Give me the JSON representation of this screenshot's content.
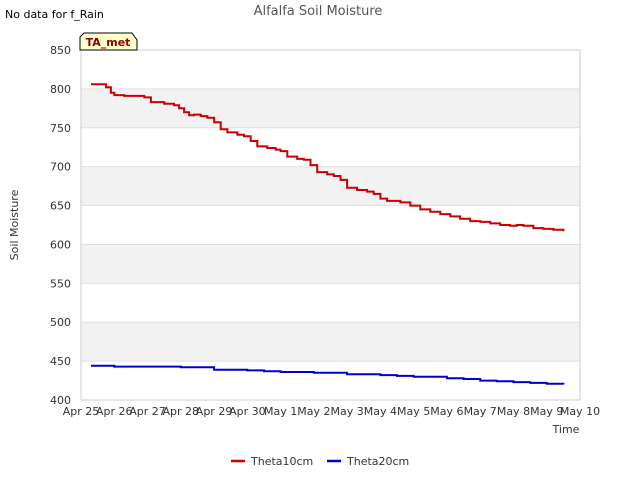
{
  "note": "No data for f_Rain",
  "badge": "TA_met",
  "chart_data": {
    "type": "line",
    "title": "Alfalfa Soil Moisture",
    "xlabel": "Time",
    "ylabel": "Soil Moisture",
    "xlim": [
      0,
      15
    ],
    "ylim": [
      400,
      850
    ],
    "yticks": [
      400,
      450,
      500,
      550,
      600,
      650,
      700,
      750,
      800,
      850
    ],
    "xtick_labels": [
      "Apr 25",
      "Apr 26",
      "Apr 27",
      "Apr 28",
      "Apr 29",
      "Apr 30",
      "May 1",
      "May 2",
      "May 3",
      "May 4",
      "May 5",
      "May 6",
      "May 7",
      "May 8",
      "May 9",
      "May 10"
    ],
    "grid": true,
    "legend_position": "bottom-center",
    "series": [
      {
        "name": "Theta10cm",
        "color": "#cc0000",
        "x": [
          0.3,
          0.6,
          0.75,
          0.9,
          1.0,
          1.3,
          1.7,
          1.9,
          2.1,
          2.3,
          2.5,
          2.8,
          2.95,
          3.1,
          3.25,
          3.4,
          3.6,
          3.8,
          4.0,
          4.2,
          4.4,
          4.7,
          4.9,
          5.1,
          5.3,
          5.6,
          5.85,
          6.0,
          6.2,
          6.5,
          6.7,
          6.9,
          7.1,
          7.4,
          7.6,
          7.8,
          8.0,
          8.3,
          8.6,
          8.8,
          9.0,
          9.2,
          9.6,
          9.9,
          10.2,
          10.5,
          10.8,
          11.1,
          11.4,
          11.7,
          12.0,
          12.3,
          12.6,
          12.9,
          13.1,
          13.3,
          13.6,
          13.9,
          14.2,
          14.4,
          14.5
        ],
        "values": [
          806,
          806,
          802,
          795,
          792,
          791,
          791,
          789,
          783,
          783,
          781,
          779,
          775,
          770,
          766,
          767,
          765,
          763,
          757,
          748,
          744,
          741,
          739,
          733,
          726,
          724,
          722,
          720,
          713,
          710,
          709,
          702,
          693,
          690,
          688,
          683,
          673,
          670,
          668,
          665,
          659,
          656,
          654,
          650,
          645,
          642,
          639,
          636,
          633,
          630,
          629,
          627,
          625,
          624,
          625,
          624,
          621,
          620,
          619,
          619,
          617
        ]
      },
      {
        "name": "Theta20cm",
        "color": "#0000cc",
        "x": [
          0.3,
          1.0,
          2.0,
          3.0,
          4.0,
          5.0,
          5.5,
          6.0,
          7.0,
          8.0,
          8.5,
          9.0,
          9.5,
          10.0,
          11.0,
          11.5,
          12.0,
          12.5,
          13.0,
          13.5,
          14.0,
          14.5
        ],
        "values": [
          444,
          443,
          443,
          442,
          439,
          438,
          437,
          436,
          435,
          433,
          433,
          432,
          431,
          430,
          428,
          427,
          425,
          424,
          423,
          422,
          421,
          420
        ]
      }
    ]
  }
}
